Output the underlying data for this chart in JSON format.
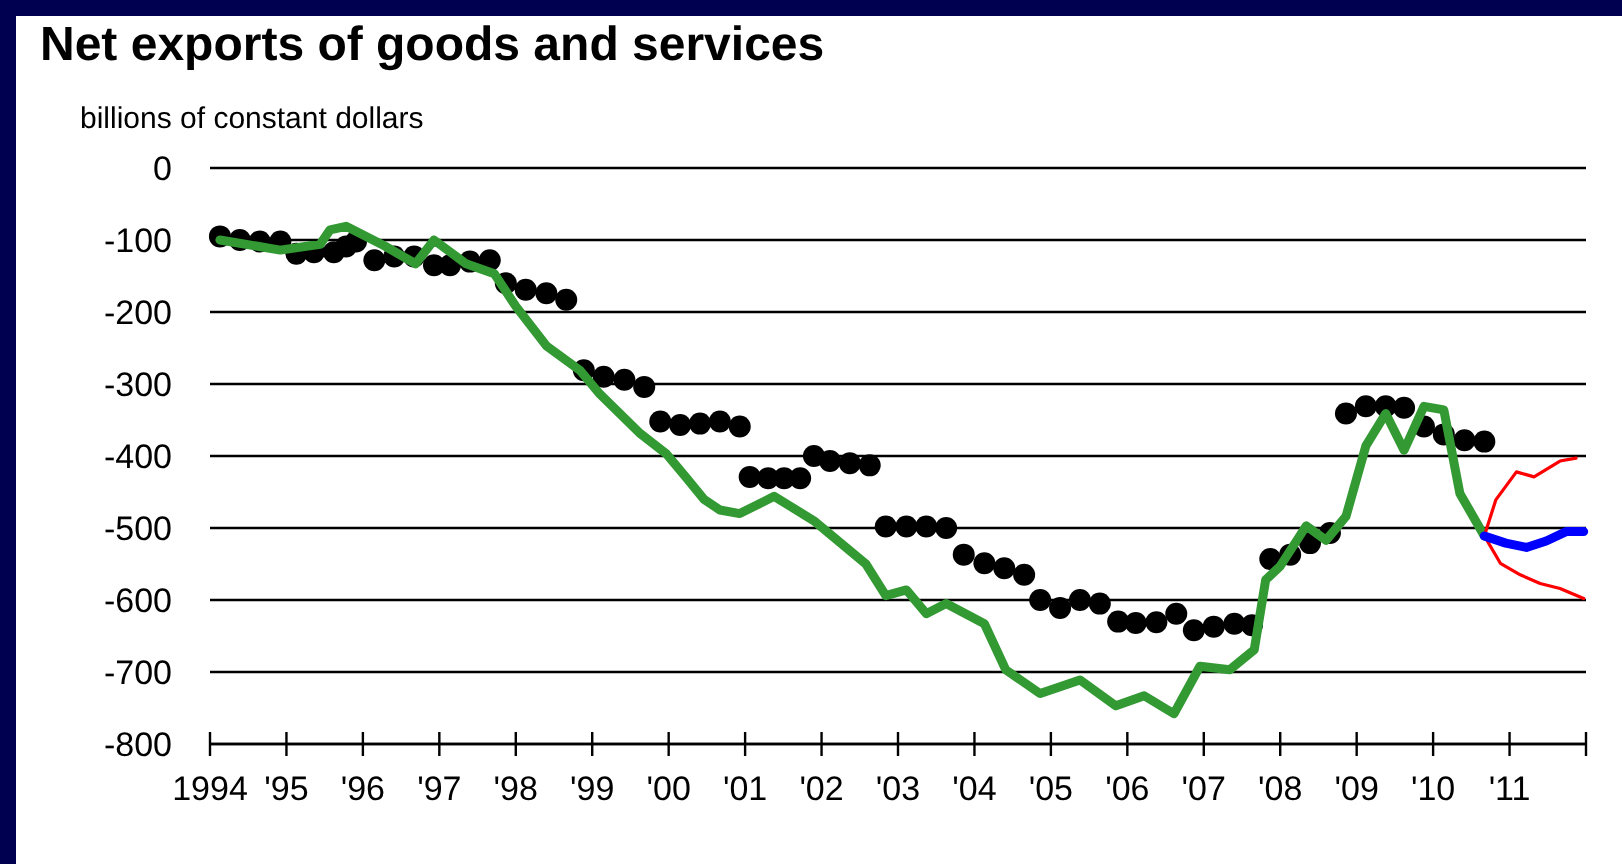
{
  "chart_data": {
    "type": "line",
    "title": "Net exports of goods and services",
    "ylabel": "billions of constant dollars",
    "xlim": [
      1994,
      2012
    ],
    "ylim": [
      -800,
      0
    ],
    "yticks": [
      0,
      -100,
      -200,
      -300,
      -400,
      -500,
      -600,
      -700,
      -800
    ],
    "xticks": [
      {
        "value": 1994,
        "label": "1994"
      },
      {
        "value": 1995,
        "label": "'95"
      },
      {
        "value": 1996,
        "label": "'96"
      },
      {
        "value": 1997,
        "label": "'97"
      },
      {
        "value": 1998,
        "label": "'98"
      },
      {
        "value": 1999,
        "label": "'99"
      },
      {
        "value": 2000,
        "label": "'00"
      },
      {
        "value": 2001,
        "label": "'01"
      },
      {
        "value": 2002,
        "label": "'02"
      },
      {
        "value": 2003,
        "label": "'03"
      },
      {
        "value": 2004,
        "label": "'04"
      },
      {
        "value": 2005,
        "label": "'05"
      },
      {
        "value": 2006,
        "label": "'06"
      },
      {
        "value": 2007,
        "label": "'07"
      },
      {
        "value": 2008,
        "label": "'08"
      },
      {
        "value": 2009,
        "label": "'09"
      },
      {
        "value": 2010,
        "label": "'10"
      },
      {
        "value": 2011,
        "label": "'11"
      },
      {
        "value": 2012,
        "label": null
      }
    ],
    "grid": "y",
    "series": [
      {
        "type": "scatter",
        "marker": "circle",
        "color": "#000000",
        "x": [
          1994.13,
          1994.39,
          1994.65,
          1994.92,
          1995.13,
          1995.36,
          1995.62,
          1995.78,
          1995.91,
          1996.15,
          1996.41,
          1996.67,
          1996.93,
          1997.14,
          1997.4,
          1997.66,
          1997.87,
          1998.13,
          1998.4,
          1998.66,
          1998.89,
          1999.15,
          1999.42,
          1999.68,
          1999.89,
          2000.15,
          2000.41,
          2000.67,
          2000.93,
          2001.06,
          2001.3,
          2001.51,
          2001.72,
          2001.9,
          2002.11,
          2002.37,
          2002.63,
          2002.84,
          2003.11,
          2003.37,
          2003.63,
          2003.86,
          2004.13,
          2004.39,
          2004.65,
          2004.86,
          2005.12,
          2005.38,
          2005.64,
          2005.88,
          2006.11,
          2006.38,
          2006.64,
          2006.87,
          2007.13,
          2007.4,
          2007.63,
          2007.87,
          2008.13,
          2008.39,
          2008.65,
          2008.86,
          2009.12,
          2009.38,
          2009.62,
          2009.88,
          2010.14,
          2010.41,
          2010.67
        ],
        "values": [
          -95,
          -100,
          -102,
          -102,
          -119,
          -117,
          -117,
          -109,
          -102,
          -128,
          -123,
          -123,
          -135,
          -135,
          -130,
          -128,
          -160,
          -169,
          -174,
          -183,
          -281,
          -290,
          -294,
          -304,
          -352,
          -357,
          -355,
          -352,
          -359,
          -429,
          -431,
          -431,
          -431,
          -400,
          -407,
          -410,
          -413,
          -498,
          -498,
          -498,
          -500,
          -537,
          -549,
          -556,
          -565,
          -600,
          -611,
          -600,
          -605,
          -630,
          -632,
          -631,
          -619,
          -642,
          -637,
          -633,
          -635,
          -543,
          -537,
          -521,
          -507,
          -341,
          -331,
          -331,
          -333,
          -359,
          -370,
          -378,
          -380
        ]
      },
      {
        "color": "#339933",
        "x": [
          1994.13,
          1994.92,
          1995.44,
          1995.57,
          1995.78,
          1996.28,
          1996.69,
          1996.93,
          1997.35,
          1997.72,
          1998.0,
          1998.4,
          1998.84,
          1999.1,
          1999.63,
          1999.97,
          2000.23,
          2000.46,
          2000.67,
          2000.93,
          2001.38,
          2001.9,
          2002.58,
          2002.84,
          2003.11,
          2003.37,
          2003.63,
          2004.13,
          2004.41,
          2004.86,
          2005.38,
          2005.85,
          2006.22,
          2006.61,
          2006.95,
          2007.34,
          2007.66,
          2007.81,
          2008.0,
          2008.34,
          2008.6,
          2008.86,
          2009.12,
          2009.38,
          2009.62,
          2009.88,
          2010.14,
          2010.35,
          2010.67
        ],
        "values": [
          -100,
          -114,
          -106,
          -86,
          -81,
          -108,
          -133,
          -100,
          -133,
          -147,
          -192,
          -247,
          -281,
          -314,
          -369,
          -397,
          -430,
          -460,
          -475,
          -480,
          -456,
          -490,
          -550,
          -594,
          -586,
          -619,
          -605,
          -633,
          -697,
          -730,
          -711,
          -747,
          -733,
          -758,
          -692,
          -697,
          -669,
          -572,
          -553,
          -497,
          -517,
          -484,
          -386,
          -341,
          -392,
          -331,
          -336,
          -452,
          -511
        ]
      },
      {
        "color": "#ff0000",
        "x": [
          2010.67,
          2010.82,
          2011.09,
          2011.32,
          2011.66,
          2011.87
        ],
        "values": [
          -511,
          -461,
          -422,
          -429,
          -407,
          -403
        ]
      },
      {
        "color": "#ff0000",
        "x": [
          2010.67,
          2010.88,
          2011.14,
          2011.4,
          2011.66,
          2011.97
        ],
        "values": [
          -511,
          -549,
          -565,
          -577,
          -584,
          -598
        ]
      },
      {
        "color": "#0000ff",
        "x": [
          2010.67,
          2010.95,
          2011.22,
          2011.48,
          2011.74,
          2011.97
        ],
        "values": [
          -511,
          -521,
          -527,
          -518,
          -505,
          -505
        ]
      }
    ]
  }
}
